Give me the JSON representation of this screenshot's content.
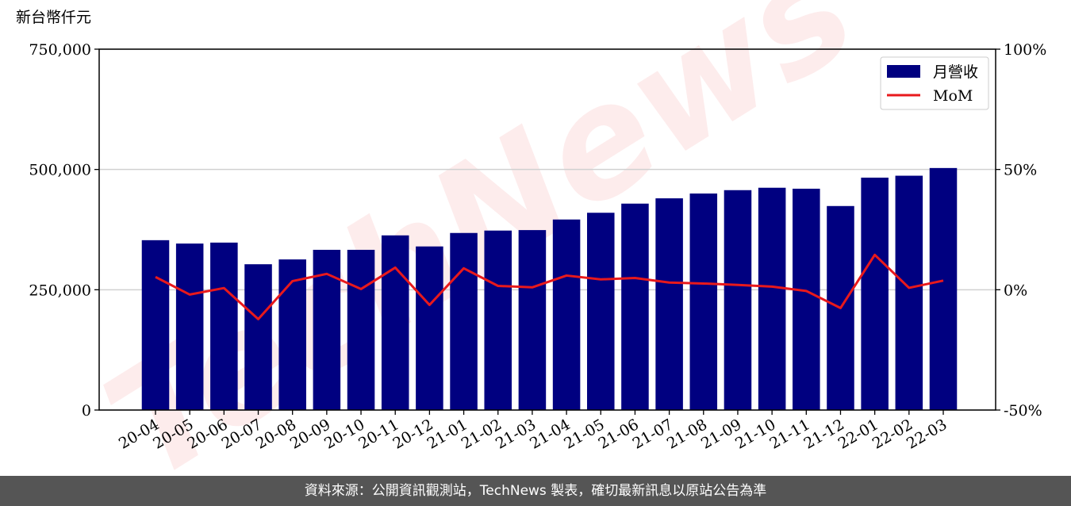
{
  "chart_data": {
    "type": "bar_line",
    "ylabel": "新台幣仟元",
    "watermark": "TechNews",
    "categories": [
      "20-04",
      "20-05",
      "20-06",
      "20-07",
      "20-08",
      "20-09",
      "20-10",
      "20-11",
      "20-12",
      "21-01",
      "21-02",
      "21-03",
      "21-04",
      "21-05",
      "21-06",
      "21-07",
      "21-08",
      "21-09",
      "21-10",
      "21-11",
      "21-12",
      "22-01",
      "22-02",
      "22-03"
    ],
    "series": [
      {
        "name": "月營收",
        "type": "bar",
        "color": "#000080",
        "values": [
          353000,
          346000,
          348000,
          303000,
          313000,
          333000,
          333000,
          363000,
          340000,
          368000,
          373000,
          374000,
          396000,
          410000,
          429000,
          440000,
          450000,
          457000,
          462000,
          460000,
          424000,
          483000,
          487000,
          503000
        ]
      },
      {
        "name": "MoM",
        "type": "line",
        "axis": "y2",
        "color": "#e8191c",
        "values": [
          5.3,
          -2.0,
          0.7,
          -12.2,
          3.6,
          6.6,
          0.3,
          9.2,
          -6.3,
          8.9,
          1.6,
          1.0,
          5.9,
          4.3,
          4.9,
          3.0,
          2.6,
          2.0,
          1.3,
          -0.5,
          -7.6,
          14.5,
          0.8,
          3.8
        ]
      }
    ],
    "ylim": [
      0,
      750000
    ],
    "yticks": [
      0,
      {
        "value": 250000,
        "label": "250,000"
      },
      {
        "value": 500000,
        "label": "500,000"
      },
      {
        "value": 750000,
        "label": "750,000"
      }
    ],
    "y2lim": [
      -50,
      100
    ],
    "y2ticks": [
      {
        "value": -50,
        "label": "-50%"
      },
      {
        "value": 0,
        "label": "0%"
      },
      {
        "value": 50,
        "label": "50%"
      },
      {
        "value": 100,
        "label": "100%"
      }
    ],
    "grid": true,
    "legend": "upper right"
  },
  "footer": "資料來源：公開資訊觀測站，TechNews 製表，確切最新訊息以原站公告為準"
}
